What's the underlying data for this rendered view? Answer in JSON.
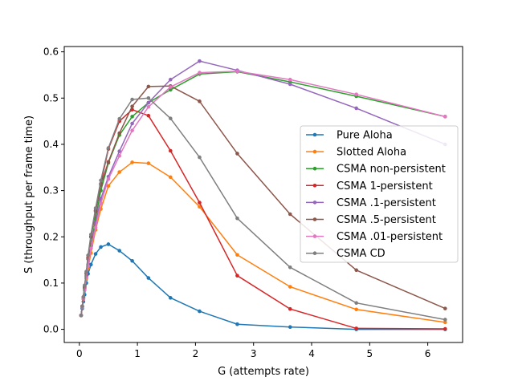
{
  "chart_data": {
    "type": "line",
    "title": "",
    "xlabel": "G (attempts rate)",
    "ylabel": "S (throughput per frame time)",
    "xlim": [
      -0.26,
      6.6
    ],
    "ylim": [
      -0.0285,
      0.6115
    ],
    "xticks": [
      0,
      1,
      2,
      3,
      4,
      5,
      6
    ],
    "yticks": [
      0.0,
      0.1,
      0.2,
      0.3,
      0.4,
      0.5,
      0.6
    ],
    "ytick_labels": [
      "0.0",
      "0.1",
      "0.2",
      "0.3",
      "0.4",
      "0.5",
      "0.6"
    ],
    "grid": false,
    "legend_position": "center-right",
    "series": [
      {
        "name": "Pure Aloha",
        "color": "#1f77b4",
        "x": [
          0.03,
          0.05,
          0.07,
          0.09,
          0.12,
          0.15,
          0.2,
          0.28,
          0.37,
          0.5,
          0.69,
          0.91,
          1.19,
          1.57,
          2.07,
          2.72,
          3.63,
          4.77,
          6.3
        ],
        "y": [
          0.03,
          0.045,
          0.06,
          0.075,
          0.1,
          0.12,
          0.14,
          0.163,
          0.178,
          0.184,
          0.17,
          0.148,
          0.111,
          0.068,
          0.039,
          0.011,
          0.005,
          0.0,
          0.0
        ]
      },
      {
        "name": "Slotted Aloha",
        "color": "#ff7f0e",
        "x": [
          0.03,
          0.05,
          0.07,
          0.09,
          0.12,
          0.15,
          0.2,
          0.28,
          0.37,
          0.5,
          0.69,
          0.91,
          1.19,
          1.57,
          2.07,
          2.72,
          3.63,
          4.77,
          6.3
        ],
        "y": [
          0.03,
          0.048,
          0.065,
          0.085,
          0.11,
          0.132,
          0.165,
          0.215,
          0.26,
          0.31,
          0.34,
          0.361,
          0.359,
          0.329,
          0.265,
          0.161,
          0.092,
          0.043,
          0.015
        ]
      },
      {
        "name": "CSMA non-persistent",
        "color": "#2ca02c",
        "x": [
          0.03,
          0.05,
          0.07,
          0.09,
          0.12,
          0.15,
          0.2,
          0.28,
          0.37,
          0.5,
          0.69,
          0.91,
          1.19,
          1.57,
          2.07,
          2.72,
          3.63,
          4.77,
          6.3
        ],
        "y": [
          0.03,
          0.049,
          0.068,
          0.088,
          0.115,
          0.14,
          0.18,
          0.24,
          0.3,
          0.36,
          0.42,
          0.46,
          0.49,
          0.518,
          0.552,
          0.557,
          0.535,
          0.504,
          0.46
        ]
      },
      {
        "name": "CSMA 1-persistent",
        "color": "#d62728",
        "x": [
          0.03,
          0.05,
          0.07,
          0.09,
          0.12,
          0.15,
          0.2,
          0.28,
          0.37,
          0.5,
          0.69,
          0.91,
          1.19,
          1.57,
          2.07,
          2.72,
          3.63,
          4.77,
          6.3
        ],
        "y": [
          0.03,
          0.05,
          0.07,
          0.092,
          0.122,
          0.155,
          0.2,
          0.257,
          0.315,
          0.39,
          0.45,
          0.475,
          0.462,
          0.386,
          0.274,
          0.116,
          0.044,
          0.002,
          0.001
        ]
      },
      {
        "name": "CSMA .1-persistent",
        "color": "#9467bd",
        "x": [
          0.03,
          0.05,
          0.07,
          0.09,
          0.12,
          0.15,
          0.2,
          0.28,
          0.37,
          0.5,
          0.69,
          0.91,
          1.19,
          1.57,
          2.07,
          2.72,
          3.63,
          4.77,
          6.3
        ],
        "y": [
          0.03,
          0.048,
          0.066,
          0.085,
          0.112,
          0.137,
          0.175,
          0.23,
          0.282,
          0.33,
          0.385,
          0.445,
          0.49,
          0.54,
          0.58,
          0.56,
          0.53,
          0.478,
          0.4
        ]
      },
      {
        "name": "CSMA .5-persistent",
        "color": "#8c564b",
        "x": [
          0.03,
          0.05,
          0.07,
          0.09,
          0.12,
          0.15,
          0.2,
          0.28,
          0.37,
          0.5,
          0.69,
          0.91,
          1.19,
          1.57,
          2.07,
          2.72,
          3.63,
          4.77,
          6.3
        ],
        "y": [
          0.03,
          0.049,
          0.069,
          0.09,
          0.12,
          0.152,
          0.2,
          0.255,
          0.312,
          0.362,
          0.424,
          0.482,
          0.525,
          0.526,
          0.493,
          0.38,
          0.249,
          0.128,
          0.045
        ]
      },
      {
        "name": "CSMA .01-persistent",
        "color": "#e377c2",
        "x": [
          0.03,
          0.05,
          0.07,
          0.09,
          0.12,
          0.15,
          0.2,
          0.28,
          0.37,
          0.5,
          0.69,
          0.91,
          1.19,
          1.57,
          2.07,
          2.72,
          3.63,
          4.77,
          6.3
        ],
        "y": [
          0.03,
          0.048,
          0.066,
          0.085,
          0.112,
          0.137,
          0.175,
          0.22,
          0.272,
          0.325,
          0.375,
          0.43,
          0.481,
          0.524,
          0.555,
          0.558,
          0.54,
          0.508,
          0.46
        ]
      },
      {
        "name": "CSMA CD",
        "color": "#7f7f7f",
        "x": [
          0.03,
          0.05,
          0.07,
          0.09,
          0.12,
          0.15,
          0.2,
          0.28,
          0.37,
          0.5,
          0.69,
          0.91,
          1.19,
          1.57,
          2.07,
          2.72,
          3.63,
          4.77,
          6.3
        ],
        "y": [
          0.03,
          0.05,
          0.07,
          0.095,
          0.125,
          0.16,
          0.205,
          0.262,
          0.322,
          0.392,
          0.455,
          0.497,
          0.5,
          0.456,
          0.372,
          0.24,
          0.134,
          0.057,
          0.021
        ]
      }
    ]
  }
}
